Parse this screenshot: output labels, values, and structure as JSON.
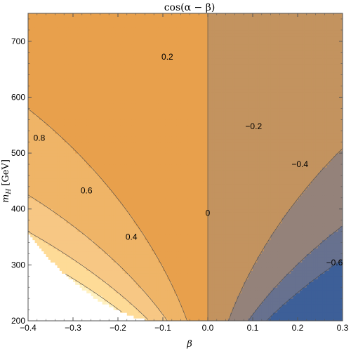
{
  "chart_data": {
    "type": "heatmap",
    "subtype": "contour",
    "title": "cos(α − β)",
    "xlabel": "β",
    "ylabel": "m_H [GeV]",
    "ylabel_main": "m",
    "ylabel_sub": "H",
    "ylabel_unit": " [GeV]",
    "xlim": [
      -0.4,
      0.3
    ],
    "ylim": [
      200,
      750
    ],
    "x_ticks": [
      -0.4,
      -0.3,
      -0.2,
      -0.1,
      0.0,
      0.1,
      0.2,
      0.3
    ],
    "x_tick_labels": [
      "−0.4",
      "−0.3",
      "−0.2",
      "−0.1",
      "0.0",
      "0.1",
      "0.2",
      "0.3"
    ],
    "y_ticks": [
      200,
      300,
      400,
      500,
      600,
      700
    ],
    "y_tick_labels": [
      "200",
      "300",
      "400",
      "500",
      "600",
      "700"
    ],
    "contour_levels": [
      -0.6,
      -0.4,
      -0.2,
      0,
      0.2,
      0.4,
      0.6,
      0.8
    ],
    "contour_labels": [
      {
        "text": "0.2",
        "beta": -0.09,
        "m": 672
      },
      {
        "text": "−0.2",
        "beta": 0.102,
        "m": 548
      },
      {
        "text": "0.8",
        "beta": -0.375,
        "m": 527
      },
      {
        "text": "−0.4",
        "beta": 0.205,
        "m": 480
      },
      {
        "text": "0.6",
        "beta": -0.27,
        "m": 433
      },
      {
        "text": "0",
        "beta": 0.0,
        "m": 393
      },
      {
        "text": "0.4",
        "beta": -0.17,
        "m": 350
      },
      {
        "text": "−0.6",
        "beta": 0.282,
        "m": 304
      }
    ],
    "colormap": {
      "name": "orange-blue",
      "stops": [
        {
          "value": 1.0,
          "color": "#fffbe0"
        },
        {
          "value": 0.9,
          "color": "#fff1c0"
        },
        {
          "value": 0.7,
          "color": "#fedb97"
        },
        {
          "value": 0.5,
          "color": "#f7c784"
        },
        {
          "value": 0.3,
          "color": "#efb467"
        },
        {
          "value": 0.1,
          "color": "#e8a04c"
        },
        {
          "value": -0.1,
          "color": "#c3935f"
        },
        {
          "value": -0.3,
          "color": "#94827a"
        },
        {
          "value": -0.5,
          "color": "#67718f"
        },
        {
          "value": -0.7,
          "color": "#3d5f98"
        },
        {
          "value": -0.9,
          "color": "#2f50a0"
        }
      ]
    },
    "grid": false,
    "legend": "none"
  }
}
